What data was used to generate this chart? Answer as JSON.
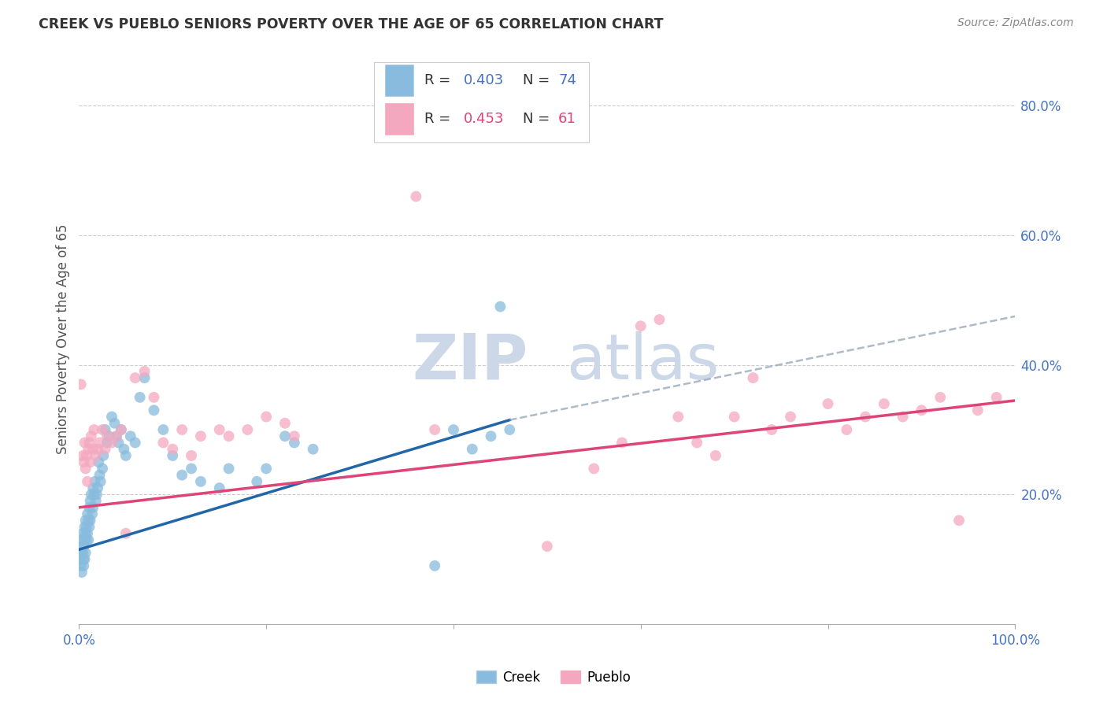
{
  "title": "CREEK VS PUEBLO SENIORS POVERTY OVER THE AGE OF 65 CORRELATION CHART",
  "source": "Source: ZipAtlas.com",
  "ylabel": "Seniors Poverty Over the Age of 65",
  "xlim": [
    0,
    1.0
  ],
  "ylim": [
    0,
    0.88
  ],
  "creek_color": "#88bbdd",
  "pueblo_color": "#f4a8c0",
  "creek_line_color": "#2266aa",
  "pueblo_line_color": "#dd4477",
  "dashed_line_color": "#99aabb",
  "creek_R": 0.403,
  "creek_N": 74,
  "pueblo_R": 0.453,
  "pueblo_N": 61,
  "background_color": "#ffffff",
  "title_color": "#333333",
  "axis_label_color": "#555555",
  "tick_color": "#4472c4",
  "legend_text_color": "#333333",
  "creek_x": [
    0.001,
    0.002,
    0.002,
    0.003,
    0.003,
    0.003,
    0.004,
    0.004,
    0.005,
    0.005,
    0.005,
    0.006,
    0.006,
    0.006,
    0.007,
    0.007,
    0.007,
    0.008,
    0.008,
    0.009,
    0.009,
    0.01,
    0.01,
    0.011,
    0.011,
    0.012,
    0.012,
    0.013,
    0.014,
    0.015,
    0.015,
    0.016,
    0.017,
    0.018,
    0.019,
    0.02,
    0.021,
    0.022,
    0.023,
    0.025,
    0.026,
    0.028,
    0.03,
    0.032,
    0.035,
    0.038,
    0.04,
    0.042,
    0.045,
    0.048,
    0.05,
    0.055,
    0.06,
    0.065,
    0.07,
    0.08,
    0.09,
    0.1,
    0.11,
    0.12,
    0.13,
    0.15,
    0.16,
    0.19,
    0.2,
    0.22,
    0.23,
    0.25,
    0.38,
    0.4,
    0.42,
    0.44,
    0.45,
    0.46
  ],
  "creek_y": [
    0.1,
    0.09,
    0.11,
    0.12,
    0.08,
    0.13,
    0.11,
    0.14,
    0.1,
    0.09,
    0.12,
    0.1,
    0.13,
    0.15,
    0.11,
    0.14,
    0.16,
    0.13,
    0.15,
    0.14,
    0.17,
    0.13,
    0.16,
    0.15,
    0.18,
    0.16,
    0.19,
    0.2,
    0.17,
    0.18,
    0.21,
    0.2,
    0.22,
    0.19,
    0.2,
    0.21,
    0.25,
    0.23,
    0.22,
    0.24,
    0.26,
    0.3,
    0.28,
    0.29,
    0.32,
    0.31,
    0.29,
    0.28,
    0.3,
    0.27,
    0.26,
    0.29,
    0.28,
    0.35,
    0.38,
    0.33,
    0.3,
    0.26,
    0.23,
    0.24,
    0.22,
    0.21,
    0.24,
    0.22,
    0.24,
    0.29,
    0.28,
    0.27,
    0.09,
    0.3,
    0.27,
    0.29,
    0.49,
    0.3
  ],
  "pueblo_x": [
    0.002,
    0.004,
    0.005,
    0.006,
    0.007,
    0.008,
    0.009,
    0.01,
    0.011,
    0.012,
    0.013,
    0.015,
    0.016,
    0.018,
    0.02,
    0.022,
    0.025,
    0.028,
    0.03,
    0.035,
    0.04,
    0.045,
    0.05,
    0.06,
    0.07,
    0.08,
    0.09,
    0.1,
    0.11,
    0.12,
    0.13,
    0.15,
    0.16,
    0.18,
    0.2,
    0.22,
    0.23,
    0.36,
    0.38,
    0.5,
    0.55,
    0.58,
    0.6,
    0.62,
    0.64,
    0.66,
    0.68,
    0.7,
    0.72,
    0.74,
    0.76,
    0.8,
    0.82,
    0.84,
    0.86,
    0.88,
    0.9,
    0.92,
    0.94,
    0.96,
    0.98
  ],
  "pueblo_y": [
    0.37,
    0.26,
    0.25,
    0.28,
    0.24,
    0.26,
    0.22,
    0.27,
    0.28,
    0.25,
    0.29,
    0.27,
    0.3,
    0.26,
    0.27,
    0.28,
    0.3,
    0.27,
    0.29,
    0.28,
    0.29,
    0.3,
    0.14,
    0.38,
    0.39,
    0.35,
    0.28,
    0.27,
    0.3,
    0.26,
    0.29,
    0.3,
    0.29,
    0.3,
    0.32,
    0.31,
    0.29,
    0.66,
    0.3,
    0.12,
    0.24,
    0.28,
    0.46,
    0.47,
    0.32,
    0.28,
    0.26,
    0.32,
    0.38,
    0.3,
    0.32,
    0.34,
    0.3,
    0.32,
    0.34,
    0.32,
    0.33,
    0.35,
    0.16,
    0.33,
    0.35
  ],
  "creek_line_x_start": 0.0,
  "creek_line_x_end": 0.46,
  "creek_line_y_start": 0.115,
  "creek_line_y_end": 0.315,
  "pueblo_line_x_start": 0.0,
  "pueblo_line_x_end": 1.0,
  "pueblo_line_y_start": 0.18,
  "pueblo_line_y_end": 0.345,
  "dashed_line_x_start": 0.46,
  "dashed_line_x_end": 1.0,
  "dashed_line_y_start": 0.315,
  "dashed_line_y_end": 0.475
}
